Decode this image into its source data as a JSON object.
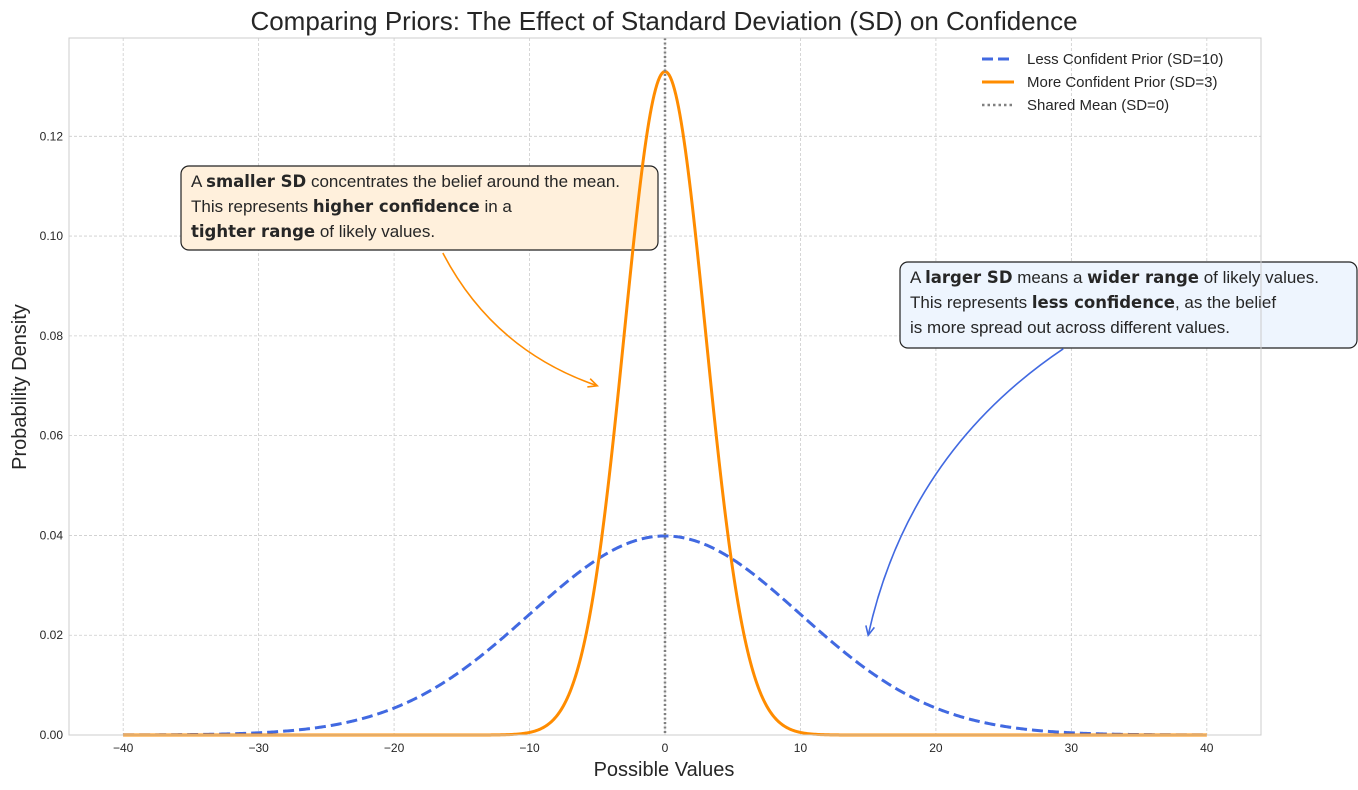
{
  "chart_data": {
    "type": "line",
    "title": "Comparing Priors: The Effect of Standard Deviation (SD) on Confidence",
    "xlabel": "Possible Values",
    "ylabel": "Probability Density",
    "xlim": [
      -44,
      44
    ],
    "ylim": [
      0,
      0.1397
    ],
    "x_range": [
      -40,
      40
    ],
    "grid": true,
    "legend_position": "top-right",
    "x_ticks": [
      "−40",
      "−30",
      "−20",
      "−10",
      "0",
      "10",
      "20",
      "30",
      "40"
    ],
    "y_ticks": [
      "0.00",
      "0.02",
      "0.04",
      "0.06",
      "0.08",
      "0.10",
      "0.12"
    ],
    "series": [
      {
        "name": "Less Confident Prior (SD=10)",
        "distribution": "normal",
        "mean": 0,
        "sd": 10,
        "peak": 0.0399,
        "color": "#4169e1",
        "style": "dashed"
      },
      {
        "name": "More Confident Prior (SD=3)",
        "distribution": "normal",
        "mean": 0,
        "sd": 3,
        "peak": 0.133,
        "color": "#ff8c00",
        "style": "solid"
      },
      {
        "name": "Shared Mean (SD=0)",
        "type": "vline",
        "x": 0,
        "color": "#808080",
        "style": "dotted"
      }
    ],
    "annotations": [
      {
        "lines": [
          [
            {
              "text": "A ",
              "bold": false
            },
            {
              "text": "smaller SD",
              "bold": true
            },
            {
              "text": " concentrates the belief around the mean.",
              "bold": false
            }
          ],
          [
            {
              "text": "This represents ",
              "bold": false
            },
            {
              "text": "higher confidence",
              "bold": true
            },
            {
              "text": " in a",
              "bold": false
            }
          ],
          [
            {
              "text": "tighter range",
              "bold": true
            },
            {
              "text": " of likely values.",
              "bold": false
            }
          ]
        ],
        "arrow_to": [
          -5,
          0.07
        ],
        "arrow_from": [
          -16.4,
          0.0966
        ],
        "box_color": "#fff0dc",
        "arrow_color": "#ff8c00"
      },
      {
        "lines": [
          [
            {
              "text": "A ",
              "bold": false
            },
            {
              "text": "larger SD",
              "bold": true
            },
            {
              "text": " means a ",
              "bold": false
            },
            {
              "text": "wider range",
              "bold": true
            },
            {
              "text": " of likely values.",
              "bold": false
            }
          ],
          [
            {
              "text": "This represents ",
              "bold": false
            },
            {
              "text": "less confidence",
              "bold": true
            },
            {
              "text": ", as the belief",
              "bold": false
            }
          ],
          [
            {
              "text": "is more spread out across different values.",
              "bold": false
            }
          ]
        ],
        "arrow_to": [
          15,
          0.02
        ],
        "arrow_from": [
          29.4,
          0.0774
        ],
        "box_color": "#eef5fe",
        "arrow_color": "#4169e1"
      }
    ]
  }
}
